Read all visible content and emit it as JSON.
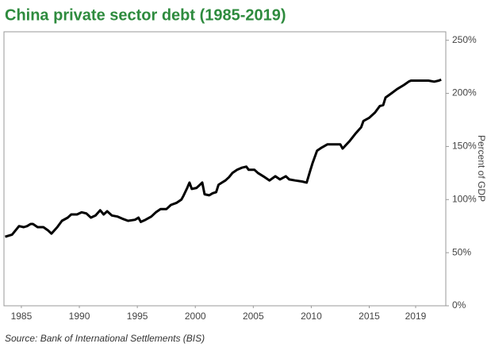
{
  "chart_data": {
    "type": "line",
    "title": "China private sector debt (1985-2019)",
    "y_axis_label": "Percent of GDP",
    "source": "Source: Bank of International Settlements (BIS)",
    "x": [
      1983.6,
      1984.2,
      1984.5,
      1984.8,
      1985.2,
      1985.5,
      1985.8,
      1986.0,
      1986.4,
      1986.9,
      1987.3,
      1987.6,
      1988.1,
      1988.5,
      1989.0,
      1989.3,
      1989.8,
      1990.2,
      1990.6,
      1991.0,
      1991.4,
      1991.8,
      1992.1,
      1992.4,
      1992.8,
      1993.3,
      1993.7,
      1994.2,
      1994.8,
      1995.1,
      1995.3,
      1995.7,
      1996.2,
      1996.6,
      1997.0,
      1997.5,
      1997.9,
      1998.4,
      1998.8,
      1999.0,
      1999.3,
      1999.5,
      1999.7,
      2000.1,
      2000.4,
      2000.6,
      2000.8,
      2001.2,
      2001.5,
      2001.8,
      2002.0,
      2002.3,
      2002.6,
      2002.9,
      2003.2,
      2003.6,
      2004.0,
      2004.4,
      2004.6,
      2005.1,
      2005.4,
      2006.0,
      2006.4,
      2006.9,
      2007.3,
      2007.8,
      2008.1,
      2008.6,
      2009.2,
      2009.6,
      2009.9,
      2010.1,
      2010.3,
      2010.5,
      2010.9,
      2011.4,
      2011.9,
      2012.5,
      2012.7,
      2013.3,
      2013.8,
      2014.3,
      2014.5,
      2015.0,
      2015.5,
      2015.9,
      2016.2,
      2016.4,
      2016.9,
      2017.4,
      2018.0,
      2018.4,
      2018.6,
      2019.5,
      2020.1,
      2020.6,
      2021.0,
      2021.2
    ],
    "series": [
      {
        "name": "Private sector debt",
        "color": "#000000",
        "values": [
          65,
          67,
          71,
          75,
          74,
          75,
          77,
          77,
          74,
          74,
          71,
          68,
          74,
          80,
          83,
          86,
          86,
          88,
          87,
          83,
          85,
          90,
          86,
          89,
          85,
          84,
          82,
          80,
          81,
          83,
          79,
          81,
          84,
          88,
          91,
          91,
          95,
          97,
          100,
          104,
          111,
          116,
          110,
          111,
          114,
          116,
          105,
          104,
          106,
          107,
          114,
          116,
          118,
          121,
          125,
          128,
          130,
          131,
          128,
          128,
          125,
          121,
          118,
          122,
          119,
          122,
          119,
          118,
          117,
          116,
          127,
          134,
          140,
          146,
          149,
          152,
          152,
          152,
          148,
          155,
          162,
          168,
          174,
          177,
          182,
          188,
          189,
          196,
          200,
          204,
          208,
          211,
          212,
          212,
          212,
          211,
          212,
          213
        ]
      }
    ],
    "xlim": [
      1983.5,
      2021.6
    ],
    "xticks": [
      1985,
      1990,
      1995,
      2000,
      2005,
      2010,
      2015,
      2019
    ],
    "ylim": [
      0,
      258
    ],
    "yticks": [
      {
        "value": 0,
        "label": "0%"
      },
      {
        "value": 50,
        "label": "50%"
      },
      {
        "value": 100,
        "label": "100%"
      },
      {
        "value": 150,
        "label": "150%"
      },
      {
        "value": 200,
        "label": "200%"
      },
      {
        "value": 250,
        "label": "250%"
      }
    ],
    "grid": false
  }
}
